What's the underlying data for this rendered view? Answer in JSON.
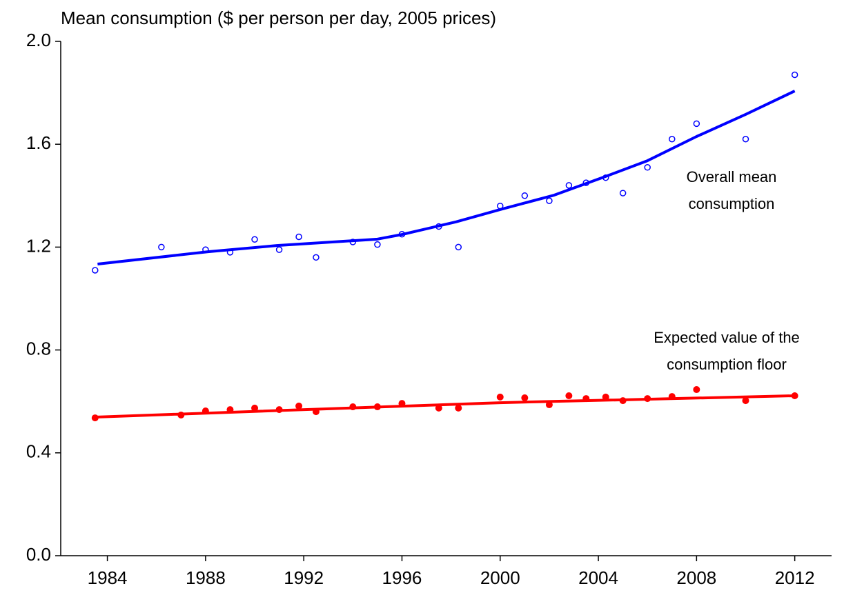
{
  "chart_data": {
    "type": "scatter",
    "title": "Mean consumption ($ per person per day, 2005 prices)",
    "xlim": [
      1982.1,
      2013.5
    ],
    "ylim": [
      0,
      2.0
    ],
    "xticks": [
      1984,
      1988,
      1992,
      1996,
      2000,
      2004,
      2008,
      2012
    ],
    "yticks": [
      {
        "value": 0,
        "label": "0.0"
      },
      0.4,
      0.8,
      1.2,
      1.6,
      {
        "value": 2.0,
        "label": "2.0"
      }
    ],
    "series": [
      {
        "style": "open-points",
        "color": "#0000ff",
        "x": [
          1983.5,
          1986.2,
          1988,
          1989,
          1990,
          1991,
          1991.8,
          1992.5,
          1994,
          1995,
          1996,
          1997.5,
          1998.3,
          2000,
          2001,
          2002,
          2002.8,
          2003.5,
          2004.3,
          2005,
          2006,
          2007,
          2008,
          2010,
          2012
        ],
        "values": [
          1.11,
          1.2,
          1.19,
          1.18,
          1.23,
          1.19,
          1.24,
          1.16,
          1.22,
          1.21,
          1.25,
          1.28,
          1.2,
          1.36,
          1.4,
          1.38,
          1.44,
          1.45,
          1.47,
          1.41,
          1.51,
          1.62,
          1.68,
          1.62,
          1.87
        ]
      },
      {
        "style": "line",
        "color": "#0000ff",
        "x": [
          1983.6,
          1988.1,
          1990.9,
          1995,
          1996,
          1998.2,
          2000,
          2002.2,
          2004.3,
          2006,
          2008,
          2010,
          2012
        ],
        "values": [
          1.134,
          1.182,
          1.206,
          1.231,
          1.249,
          1.298,
          1.346,
          1.402,
          1.475,
          1.536,
          1.63,
          1.716,
          1.807
        ]
      },
      {
        "style": "filled-points",
        "color": "#ff0000",
        "x": [
          1983.5,
          1987,
          1988,
          1989,
          1990,
          1991,
          1991.8,
          1992.5,
          1994,
          1995,
          1996,
          1997.5,
          1998.3,
          2000,
          2001,
          2002,
          2002.8,
          2003.5,
          2004.3,
          2005,
          2006,
          2007,
          2008,
          2010,
          2012
        ],
        "values": [
          0.536,
          0.547,
          0.563,
          0.568,
          0.574,
          0.568,
          0.582,
          0.56,
          0.579,
          0.579,
          0.592,
          0.574,
          0.574,
          0.617,
          0.614,
          0.587,
          0.622,
          0.611,
          0.617,
          0.603,
          0.611,
          0.619,
          0.646,
          0.603,
          0.622
        ]
      },
      {
        "style": "line",
        "color": "#ff0000",
        "x": [
          1983.5,
          2000,
          2012
        ],
        "values": [
          0.539,
          0.595,
          0.622
        ]
      }
    ],
    "annotations": [
      {
        "lines": [
          "Overall mean",
          "consumption"
        ]
      },
      {
        "lines": [
          "Expected value of the",
          "consumption floor"
        ]
      }
    ]
  }
}
